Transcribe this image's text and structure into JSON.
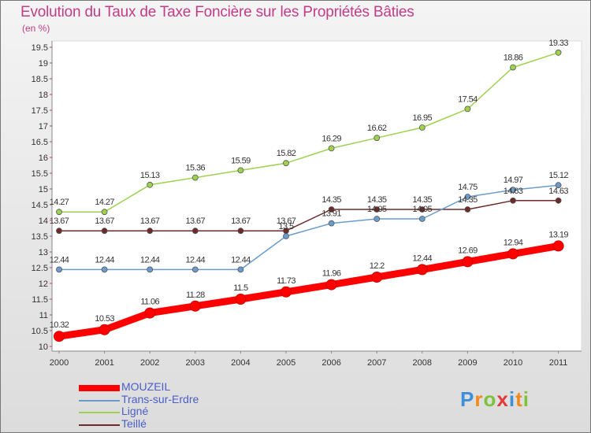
{
  "title": "Evolution du Taux de Taxe Foncière sur les Propriétés Bâties",
  "unit": "(en %)",
  "logo": "Proxiti",
  "chart_data": {
    "type": "line",
    "categories": [
      "2000",
      "2001",
      "2002",
      "2003",
      "2004",
      "2005",
      "2006",
      "2007",
      "2008",
      "2009",
      "2010",
      "2011"
    ],
    "ylim": [
      10,
      19.5
    ],
    "yticks": [
      "10",
      "10.5",
      "11",
      "11.5",
      "12",
      "12.5",
      "13",
      "13.5",
      "14",
      "14.5",
      "15",
      "15.5",
      "16",
      "16.5",
      "17",
      "17.5",
      "18",
      "18.5",
      "19",
      "19.5"
    ],
    "grid": false,
    "legend_position": "bottom-left",
    "series": [
      {
        "name": "MOUZEIL",
        "color": "#ff0000",
        "values": [
          10.32,
          10.53,
          11.06,
          11.28,
          11.5,
          11.73,
          11.96,
          12.2,
          12.44,
          12.69,
          12.94,
          13.19
        ],
        "labels": [
          "10.32",
          "10.53",
          "11.06",
          "11.28",
          "11.5",
          "11.73",
          "11.96",
          "12.2",
          "12.44",
          "12.69",
          "12.94",
          "13.19"
        ]
      },
      {
        "name": "Trans-sur-Erdre",
        "color": "#6b9bcc",
        "values": [
          12.44,
          12.44,
          12.44,
          12.44,
          12.44,
          13.5,
          13.91,
          14.05,
          14.05,
          14.75,
          14.97,
          15.12
        ],
        "labels": [
          "12.44",
          "12.44",
          "12.44",
          "12.44",
          "12.44",
          "13.5",
          "13.91",
          "14.05",
          "14.05",
          "14.75",
          "14.97",
          "15.12"
        ]
      },
      {
        "name": "Ligné",
        "color": "#9ed24e",
        "values": [
          14.27,
          14.27,
          15.13,
          15.36,
          15.59,
          15.82,
          16.29,
          16.62,
          16.95,
          17.54,
          18.86,
          19.33
        ],
        "labels": [
          "14.27",
          "14.27",
          "15.13",
          "15.36",
          "15.59",
          "15.82",
          "16.29",
          "16.62",
          "16.95",
          "17.54",
          "18.86",
          "19.33"
        ]
      },
      {
        "name": "Teillé",
        "color": "#6e2a2a",
        "values": [
          13.67,
          13.67,
          13.67,
          13.67,
          13.67,
          13.67,
          14.35,
          14.35,
          14.35,
          14.35,
          14.63,
          14.63
        ],
        "labels": [
          "13.67",
          "13.67",
          "13.67",
          "13.67",
          "13.67",
          "13.67",
          "14.35",
          "14.35",
          "14.35",
          "14.35",
          "14.63",
          "14.63"
        ]
      }
    ]
  }
}
